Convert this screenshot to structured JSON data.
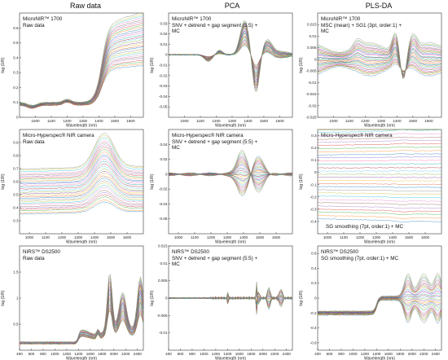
{
  "columns": [
    "Raw data",
    "PCA",
    "PLS-DA"
  ],
  "axis_common": {
    "ylabel": "log (1/R)",
    "xlabel": "Wavelength (nm)"
  },
  "chart_data": [
    {
      "type": "line",
      "row": 0,
      "col": 0,
      "title": "MicroNIR™ 1700",
      "subtitle": "Raw data",
      "xlim": [
        900,
        1680
      ],
      "ylim": [
        0.0,
        0.7
      ],
      "shape": "raw_micronir",
      "xticks": [
        1000,
        1100,
        1200,
        1300,
        1400,
        1500,
        1600
      ],
      "yticks": [
        0,
        0.1,
        0.2,
        0.3,
        0.4,
        0.5,
        0.6
      ],
      "ytick_labels": [
        "0",
        "0.1",
        "0.2",
        "0.3",
        "0.4",
        "0.5",
        "0.6"
      ]
    },
    {
      "type": "line",
      "row": 0,
      "col": 1,
      "title": "MicroNIR™ 1700",
      "subtitle": "SNV + detrend + gap segment (5:5) + MC",
      "xlim": [
        900,
        1680
      ],
      "ylim": [
        -0.06,
        0.04
      ],
      "shape": "deriv_micronir",
      "xticks": [
        1000,
        1100,
        1200,
        1300,
        1400,
        1500,
        1600
      ],
      "yticks": [
        -0.05,
        -0.04,
        -0.03,
        -0.02,
        -0.01,
        0,
        0.01,
        0.02,
        0.03
      ],
      "ytick_labels": [
        "-0.05",
        "-0.04",
        "-0.03",
        "-0.02",
        "-0.01",
        "0",
        "0.01",
        "0.02",
        "0.03"
      ]
    },
    {
      "type": "line",
      "row": 0,
      "col": 2,
      "title": "MicroNIR™ 1700",
      "subtitle": "MSC (mean) + SG1 (3pt, order:1) + MC",
      "xlim": [
        900,
        1680
      ],
      "ylim": [
        -0.025,
        0.02
      ],
      "shape": "deriv2_micronir",
      "xticks": [
        1000,
        1100,
        1200,
        1300,
        1400,
        1500,
        1600
      ],
      "yticks": [
        -0.025,
        -0.02,
        -0.015,
        -0.01,
        -0.005,
        0,
        0.005,
        0.01,
        0.015
      ],
      "ytick_labels": [
        "-0.025",
        "-0.02",
        "-0.015",
        "-0.01",
        "-0.005",
        "0",
        "0.005",
        "0.01",
        "0.015"
      ]
    },
    {
      "type": "line",
      "row": 1,
      "col": 0,
      "title": "Micro-Hyperspec® NIR camera",
      "subtitle": "Raw data",
      "xlim": [
        940,
        1700
      ],
      "ylim": [
        0.2,
        1.0
      ],
      "shape": "raw_hyper",
      "xticks": [
        1000,
        1100,
        1200,
        1300,
        1400,
        1500,
        1600
      ],
      "yticks": [
        0.3,
        0.4,
        0.5,
        0.6,
        0.7,
        0.8,
        0.9
      ],
      "ytick_labels": [
        "0.3",
        "0.4",
        "0.5",
        "0.6",
        "0.7",
        "0.8",
        "0.9"
      ]
    },
    {
      "type": "line",
      "row": 1,
      "col": 1,
      "title": "Micro-Hyperspec® NIR camera",
      "subtitle": "SNV + detrend + gap segment (5:5) + MC",
      "xlim": [
        940,
        1700
      ],
      "ylim": [
        -0.08,
        0.06
      ],
      "shape": "deriv_hyper",
      "xticks": [
        1000,
        1100,
        1200,
        1300,
        1400,
        1500,
        1600
      ],
      "yticks": [
        -0.06,
        -0.04,
        -0.02,
        0,
        0.02,
        0.04
      ],
      "ytick_labels": [
        "-0.06",
        "-0.04",
        "-0.02",
        "0",
        "0.02",
        "0.04"
      ]
    },
    {
      "type": "line",
      "row": 1,
      "col": 2,
      "title": "Micro-Hyperspec® NIR camera",
      "subtitle": "SG smoothing (7pt, order:1) + MC",
      "xlim": [
        940,
        1700
      ],
      "ylim": [
        -0.5,
        0.35
      ],
      "shape": "smooth_hyper",
      "xticks": [
        1000,
        1100,
        1200,
        1300,
        1400,
        1500,
        1600
      ],
      "yticks": [
        -0.4,
        -0.3,
        -0.2,
        -0.1,
        0,
        0.1,
        0.2,
        0.3
      ],
      "ytick_labels": [
        "-0.4",
        "-0.3",
        "-0.2",
        "-0.1",
        "0",
        "0.1",
        "0.2",
        "0.3"
      ]
    },
    {
      "type": "line",
      "row": 2,
      "col": 0,
      "title": "NIRS™ DS2500",
      "subtitle": "Raw data",
      "xlim": [
        400,
        2500
      ],
      "ylim": [
        0,
        2.0
      ],
      "shape": "raw_ds",
      "xticks": [
        400,
        600,
        800,
        1000,
        1200,
        1400,
        1600,
        1800,
        2000,
        2200,
        2400
      ],
      "yticks": [
        0.5,
        1.0,
        1.5
      ],
      "ytick_labels": [
        "0.5",
        "1",
        "1.5"
      ]
    },
    {
      "type": "line",
      "row": 2,
      "col": 1,
      "title": "NIRS™ DS2500",
      "subtitle": "SNV + detrend + gap segment (5:5) + MC",
      "xlim": [
        400,
        2500
      ],
      "ylim": [
        -0.015,
        0.015
      ],
      "shape": "deriv_ds",
      "xticks": [
        400,
        600,
        800,
        1000,
        1200,
        1400,
        1600,
        1800,
        2000,
        2200,
        2400
      ],
      "yticks": [
        -0.01,
        -0.005,
        0,
        0.005,
        0.01,
        0.015
      ],
      "ytick_labels": [
        "-0.01",
        "-0.005",
        "0",
        "0.005",
        "0.01",
        "0.015"
      ]
    },
    {
      "type": "line",
      "row": 2,
      "col": 2,
      "title": "NIRS™ DS2500",
      "subtitle": "SG smoothing (7pt, order:1) + MC",
      "xlim": [
        400,
        2500
      ],
      "ylim": [
        -0.7,
        0.7
      ],
      "shape": "smooth_ds",
      "xticks": [
        400,
        600,
        800,
        1000,
        1200,
        1400,
        1600,
        1800,
        2000,
        2200,
        2400
      ],
      "yticks": [
        -0.6,
        -0.4,
        -0.2,
        0,
        0.2,
        0.4,
        0.6
      ],
      "ytick_labels": [
        "-0.6",
        "-0.4",
        "-0.2",
        "0",
        "0.2",
        "0.4",
        "0.6"
      ]
    }
  ]
}
